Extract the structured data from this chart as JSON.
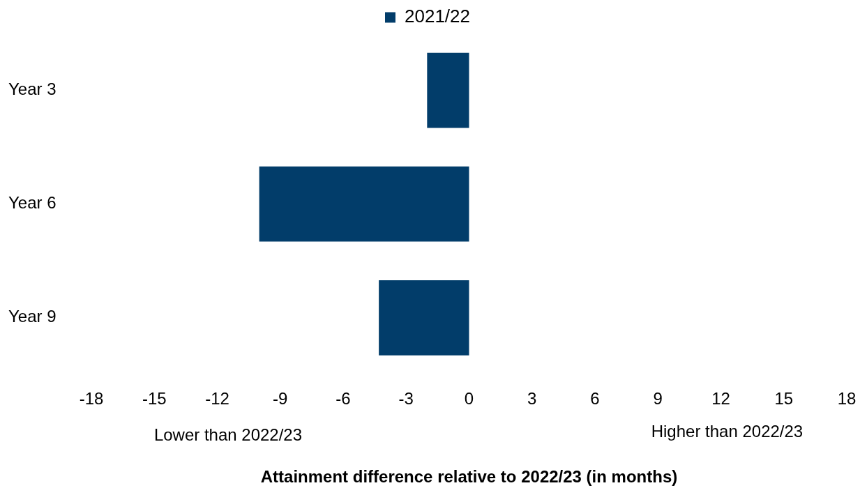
{
  "chart_data": {
    "type": "bar",
    "orientation": "horizontal",
    "categories": [
      "Year 3",
      "Year 6",
      "Year 9"
    ],
    "series": [
      {
        "name": "2021/22",
        "color": "#023d6a",
        "values": [
          -2,
          -10,
          -4.3
        ]
      }
    ],
    "xlim": [
      -18,
      18
    ],
    "xticks": [
      -18,
      -15,
      -12,
      -9,
      -6,
      -3,
      0,
      3,
      6,
      9,
      12,
      15,
      18
    ],
    "xlabel": "Attainment difference relative to 2022/23 (in months)",
    "annotations": [
      "Lower than 2022/23",
      "Higher than 2022/23"
    ],
    "legend": "top",
    "grid": false
  }
}
